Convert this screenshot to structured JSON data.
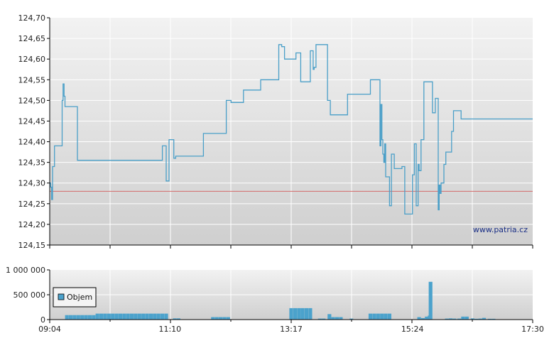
{
  "watermark": "www.patria.cz",
  "colors": {
    "price_line": "#4a9fc8",
    "reference_line": "#d46a6a",
    "volume_fill": "#4ba2cc",
    "grid": "#ffffff",
    "plot_top": "#f2f2f2",
    "plot_bottom": "#cfcfcf",
    "axis": "#000000"
  },
  "chart_data": [
    {
      "type": "line",
      "title": "",
      "xlabel": "",
      "ylabel": "",
      "x_range": [
        "09:04",
        "17:30"
      ],
      "ylim": [
        124.15,
        124.7
      ],
      "y_ticks": [
        "124,70",
        "124,65",
        "124,60",
        "124,55",
        "124,50",
        "124,45",
        "124,40",
        "124,35",
        "124,30",
        "124,25",
        "124,20",
        "124,15"
      ],
      "grid": true,
      "reference_line": 124.28,
      "series": [
        {
          "step": true,
          "points": [
            [
              "09:04",
              124.3
            ],
            [
              "09:05",
              124.29
            ],
            [
              "09:06",
              124.26
            ],
            [
              "09:07",
              124.34
            ],
            [
              "09:09",
              124.39
            ],
            [
              "09:17",
              124.5
            ],
            [
              "09:18",
              124.54
            ],
            [
              "09:19",
              124.51
            ],
            [
              "09:20",
              124.485
            ],
            [
              "09:33",
              124.355
            ],
            [
              "10:59",
              124.355
            ],
            [
              "11:02",
              124.39
            ],
            [
              "11:06",
              124.305
            ],
            [
              "11:09",
              124.405
            ],
            [
              "11:14",
              124.36
            ],
            [
              "11:16",
              124.365
            ],
            [
              "11:45",
              124.42
            ],
            [
              "12:09",
              124.5
            ],
            [
              "12:14",
              124.495
            ],
            [
              "12:27",
              124.525
            ],
            [
              "12:45",
              124.55
            ],
            [
              "13:04",
              124.635
            ],
            [
              "13:07",
              124.63
            ],
            [
              "13:10",
              124.6
            ],
            [
              "13:22",
              124.615
            ],
            [
              "13:27",
              124.545
            ],
            [
              "13:37",
              124.62
            ],
            [
              "13:40",
              124.575
            ],
            [
              "13:41",
              124.58
            ],
            [
              "13:43",
              124.635
            ],
            [
              "13:55",
              124.5
            ],
            [
              "13:58",
              124.465
            ],
            [
              "14:16",
              124.515
            ],
            [
              "14:40",
              124.55
            ],
            [
              "14:50",
              124.39
            ],
            [
              "14:51",
              124.49
            ],
            [
              "14:52",
              124.405
            ],
            [
              "14:53",
              124.37
            ],
            [
              "14:54",
              124.35
            ],
            [
              "14:55",
              124.395
            ],
            [
              "14:56",
              124.315
            ],
            [
              "15:00",
              124.245
            ],
            [
              "15:02",
              124.37
            ],
            [
              "15:05",
              124.335
            ],
            [
              "15:13",
              124.34
            ],
            [
              "15:16",
              124.225
            ],
            [
              "15:24",
              124.32
            ],
            [
              "15:26",
              124.395
            ],
            [
              "15:28",
              124.245
            ],
            [
              "15:30",
              124.345
            ],
            [
              "15:31",
              124.33
            ],
            [
              "15:33",
              124.405
            ],
            [
              "15:36",
              124.545
            ],
            [
              "15:45",
              124.47
            ],
            [
              "15:48",
              124.505
            ],
            [
              "15:51",
              124.235
            ],
            [
              "15:52",
              124.295
            ],
            [
              "15:53",
              124.275
            ],
            [
              "15:54",
              124.3
            ],
            [
              "15:57",
              124.345
            ],
            [
              "15:59",
              124.375
            ],
            [
              "16:05",
              124.425
            ],
            [
              "16:07",
              124.475
            ],
            [
              "16:15",
              124.455
            ]
          ]
        }
      ]
    },
    {
      "type": "bar",
      "title": "",
      "xlabel": "",
      "ylabel": "",
      "ylim": [
        0,
        1000000
      ],
      "y_ticks": [
        "1 000 000",
        "500 000",
        "0"
      ],
      "x_ticks": [
        "09:04",
        "11:10",
        "13:17",
        "15:24",
        "17:30"
      ],
      "grid": true,
      "legend": {
        "position": "left",
        "entries": [
          "Objem"
        ]
      },
      "series": [
        {
          "name": "Objem",
          "bars": [
            [
              "09:22",
              90000
            ],
            [
              "09:26",
              90000
            ],
            [
              "09:30",
              90000
            ],
            [
              "09:34",
              90000
            ],
            [
              "09:38",
              90000
            ],
            [
              "09:42",
              90000
            ],
            [
              "09:46",
              90000
            ],
            [
              "09:50",
              90000
            ],
            [
              "09:54",
              120000
            ],
            [
              "09:58",
              120000
            ],
            [
              "10:02",
              120000
            ],
            [
              "10:06",
              120000
            ],
            [
              "10:10",
              120000
            ],
            [
              "10:14",
              120000
            ],
            [
              "10:18",
              120000
            ],
            [
              "10:22",
              120000
            ],
            [
              "10:26",
              120000
            ],
            [
              "10:30",
              120000
            ],
            [
              "10:34",
              120000
            ],
            [
              "10:38",
              120000
            ],
            [
              "10:42",
              120000
            ],
            [
              "10:46",
              120000
            ],
            [
              "10:50",
              120000
            ],
            [
              "10:54",
              120000
            ],
            [
              "10:58",
              120000
            ],
            [
              "11:02",
              120000
            ],
            [
              "11:06",
              120000
            ],
            [
              "11:15",
              25000
            ],
            [
              "11:19",
              25000
            ],
            [
              "11:55",
              50000
            ],
            [
              "11:59",
              50000
            ],
            [
              "12:03",
              50000
            ],
            [
              "12:07",
              50000
            ],
            [
              "12:11",
              50000
            ],
            [
              "13:17",
              230000
            ],
            [
              "13:21",
              230000
            ],
            [
              "13:25",
              230000
            ],
            [
              "13:29",
              230000
            ],
            [
              "13:33",
              230000
            ],
            [
              "13:37",
              230000
            ],
            [
              "13:47",
              20000
            ],
            [
              "13:51",
              20000
            ],
            [
              "13:57",
              110000
            ],
            [
              "14:01",
              50000
            ],
            [
              "14:05",
              50000
            ],
            [
              "14:09",
              50000
            ],
            [
              "14:20",
              20000
            ],
            [
              "14:40",
              120000
            ],
            [
              "14:44",
              120000
            ],
            [
              "14:48",
              120000
            ],
            [
              "14:52",
              120000
            ],
            [
              "14:56",
              120000
            ],
            [
              "15:00",
              120000
            ],
            [
              "15:31",
              50000
            ],
            [
              "15:35",
              30000
            ],
            [
              "15:39",
              60000
            ],
            [
              "15:42",
              80000
            ],
            [
              "15:43",
              760000
            ],
            [
              "16:00",
              20000
            ],
            [
              "16:04",
              25000
            ],
            [
              "16:08",
              20000
            ],
            [
              "16:13",
              20000
            ],
            [
              "16:17",
              60000
            ],
            [
              "16:21",
              60000
            ],
            [
              "16:27",
              25000
            ],
            [
              "16:31",
              15000
            ],
            [
              "16:35",
              20000
            ],
            [
              "16:39",
              35000
            ],
            [
              "16:45",
              15000
            ],
            [
              "16:49",
              15000
            ]
          ]
        }
      ]
    }
  ]
}
